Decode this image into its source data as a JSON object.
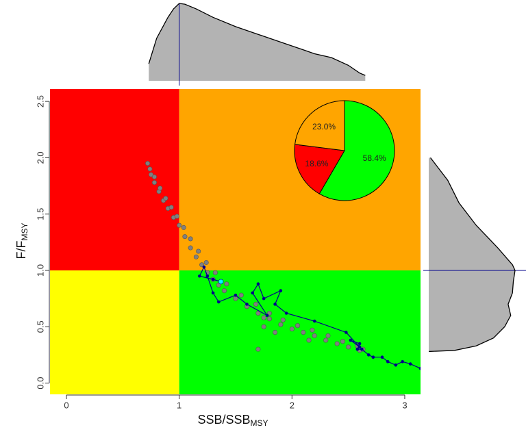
{
  "chart_data": [
    {
      "type": "scatter",
      "xlabel": {
        "text": "SSB/SSB",
        "sub": "MSY"
      },
      "ylabel": {
        "text": "F/F",
        "sub": "MSY"
      },
      "xlim": [
        -0.146,
        3.14
      ],
      "ylim": [
        -0.1,
        2.61
      ],
      "xticks": [
        0,
        1,
        2,
        3
      ],
      "yticks": [
        {
          "value": 0,
          "label": "0.0"
        },
        0.5,
        {
          "value": 1,
          "label": "1.0"
        },
        1.5,
        {
          "value": 2,
          "label": "2.0"
        },
        2.5
      ],
      "x_ref": 1,
      "y_ref": 1,
      "quadrant_colors": {
        "upper_left": "#ff0000",
        "upper_right": "#ffa500",
        "lower_left": "#ffff00",
        "lower_right": "#00ff00"
      },
      "series": [
        {
          "style": "points",
          "color": "#808080",
          "x": [
            0.72,
            0.75,
            0.78,
            0.82,
            0.86,
            0.9,
            0.95,
            1.0,
            1.05,
            1.1,
            1.15,
            1.2,
            1.25,
            1.3,
            1.35,
            1.4,
            1.5,
            1.6,
            1.7,
            1.8,
            1.9,
            2.0,
            2.1,
            2.2,
            2.3,
            2.4,
            2.5,
            2.6,
            0.74,
            0.78,
            0.83,
            0.88,
            0.93,
            0.98,
            1.04,
            1.1,
            1.17,
            1.24,
            1.32,
            1.42,
            1.55,
            1.68,
            1.8,
            1.92,
            2.05,
            2.18,
            2.32,
            2.45,
            2.58,
            2.63,
            1.75,
            1.85,
            2.15,
            1.7,
            1.75
          ],
          "values": [
            1.95,
            1.85,
            1.78,
            1.7,
            1.62,
            1.55,
            1.47,
            1.4,
            1.3,
            1.2,
            1.12,
            1.05,
            0.98,
            0.92,
            0.87,
            0.82,
            0.75,
            0.68,
            0.62,
            0.57,
            0.52,
            0.48,
            0.45,
            0.42,
            0.38,
            0.35,
            0.32,
            0.29,
            1.9,
            1.83,
            1.73,
            1.64,
            1.56,
            1.48,
            1.38,
            1.28,
            1.17,
            1.07,
            0.98,
            0.88,
            0.78,
            0.7,
            0.62,
            0.56,
            0.51,
            0.47,
            0.42,
            0.37,
            0.33,
            0.3,
            0.5,
            0.45,
            0.38,
            0.3,
            0.58
          ]
        },
        {
          "style": "line-points",
          "color": "#00008b",
          "last_color": "#00ffff",
          "x": [
            3.14,
            3.05,
            2.98,
            2.92,
            2.85,
            2.8,
            2.72,
            2.68,
            2.62,
            2.58,
            2.6,
            2.52,
            2.6,
            2.48,
            2.2,
            1.95,
            1.85,
            1.9,
            1.75,
            1.7,
            1.65,
            1.78,
            1.6,
            1.5,
            1.35,
            1.3,
            1.25,
            1.22,
            1.18,
            1.3,
            1.37
          ],
          "values": [
            0.13,
            0.17,
            0.19,
            0.16,
            0.19,
            0.23,
            0.23,
            0.25,
            0.3,
            0.3,
            0.35,
            0.38,
            0.32,
            0.45,
            0.55,
            0.62,
            0.7,
            0.82,
            0.75,
            0.88,
            0.8,
            0.6,
            0.7,
            0.78,
            0.72,
            0.8,
            0.95,
            1.03,
            0.95,
            0.92,
            0.9
          ]
        }
      ]
    },
    {
      "type": "area",
      "orientation": "vertical",
      "color": "#b3b3b3",
      "ref": 1,
      "ref_color": "#00008b",
      "x": [
        0.73,
        0.8,
        0.9,
        0.95,
        1.0,
        1.05,
        1.15,
        1.3,
        1.5,
        1.7,
        1.9,
        2.1,
        2.2,
        2.35,
        2.5,
        2.6,
        2.65
      ],
      "values": [
        0.22,
        0.55,
        0.82,
        0.93,
        1.0,
        0.99,
        0.93,
        0.82,
        0.7,
        0.6,
        0.5,
        0.4,
        0.35,
        0.3,
        0.2,
        0.1,
        0.07
      ]
    },
    {
      "type": "area",
      "orientation": "horizontal",
      "color": "#b3b3b3",
      "ref": 1,
      "ref_color": "#00008b",
      "x": [
        2.0,
        1.9,
        1.8,
        1.6,
        1.4,
        1.2,
        1.05,
        1.0,
        0.9,
        0.8,
        0.7,
        0.6,
        0.5,
        0.4,
        0.33,
        0.29,
        0.28
      ],
      "values": [
        0.02,
        0.12,
        0.22,
        0.35,
        0.55,
        0.8,
        0.97,
        1.0,
        0.98,
        0.97,
        0.92,
        0.95,
        0.88,
        0.75,
        0.55,
        0.3,
        0.0
      ]
    },
    {
      "type": "pie",
      "values": [
        58.4,
        18.6,
        23.0
      ],
      "value_labels": [
        "58.4%",
        "18.6%",
        "23.0%"
      ],
      "colors": [
        "#00ff00",
        "#ff0000",
        "#ffa500"
      ]
    }
  ]
}
